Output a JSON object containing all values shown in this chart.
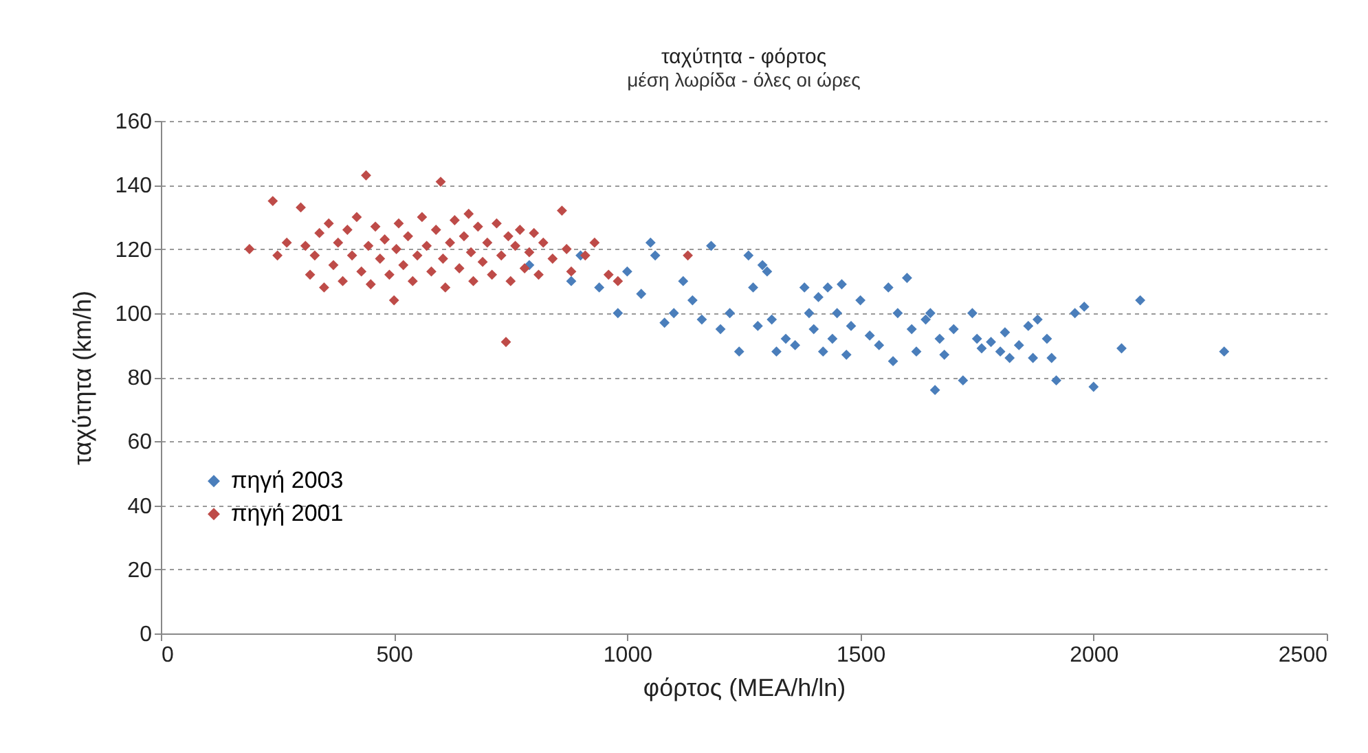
{
  "chart_data": {
    "type": "scatter",
    "title": "ταχύτητα - φόρτος",
    "subtitle": "μέση λωρίδα - όλες οι ώρες",
    "xlabel": "φόρτος (ΜΕΑ/h/ln)",
    "ylabel": "ταχύτητα (km/h)",
    "xlim": [
      0,
      2500
    ],
    "xticks": [
      0,
      500,
      1000,
      1500,
      2000,
      2500
    ],
    "ylim": [
      0,
      160
    ],
    "yticks": [
      0,
      20,
      40,
      60,
      80,
      100,
      120,
      140,
      160
    ],
    "grid": "y",
    "legend": "left",
    "marker": "diamond",
    "series": [
      {
        "name": "πηγή 2003",
        "color": "#4a7ebb",
        "x": [
          790,
          880,
          900,
          940,
          980,
          1000,
          1030,
          1050,
          1060,
          1080,
          1100,
          1120,
          1140,
          1160,
          1180,
          1200,
          1220,
          1240,
          1260,
          1270,
          1280,
          1290,
          1300,
          1310,
          1320,
          1340,
          1360,
          1380,
          1390,
          1400,
          1410,
          1420,
          1430,
          1440,
          1450,
          1460,
          1470,
          1480,
          1500,
          1520,
          1540,
          1560,
          1570,
          1580,
          1600,
          1610,
          1620,
          1640,
          1650,
          1660,
          1670,
          1680,
          1700,
          1720,
          1740,
          1750,
          1760,
          1780,
          1800,
          1810,
          1820,
          1840,
          1860,
          1870,
          1880,
          1900,
          1910,
          1920,
          1960,
          1980,
          2000,
          2060,
          2100,
          2280
        ],
        "values": [
          115,
          110,
          118,
          108,
          100,
          113,
          106,
          122,
          118,
          97,
          100,
          110,
          104,
          98,
          121,
          95,
          100,
          88,
          118,
          108,
          96,
          115,
          113,
          98,
          88,
          92,
          90,
          108,
          100,
          95,
          105,
          88,
          108,
          92,
          100,
          109,
          87,
          96,
          104,
          93,
          90,
          108,
          85,
          100,
          111,
          95,
          88,
          98,
          100,
          76,
          92,
          87,
          95,
          79,
          100,
          92,
          89,
          91,
          88,
          94,
          86,
          90,
          96,
          86,
          98,
          92,
          86,
          79,
          100,
          102,
          77,
          89,
          104,
          88
        ]
      },
      {
        "name": "πηγή 2001",
        "color": "#be4b48",
        "x": [
          190,
          240,
          250,
          270,
          300,
          310,
          320,
          330,
          340,
          350,
          360,
          370,
          380,
          390,
          400,
          410,
          420,
          430,
          440,
          445,
          450,
          460,
          470,
          480,
          490,
          500,
          505,
          510,
          520,
          530,
          540,
          550,
          560,
          570,
          580,
          590,
          600,
          605,
          610,
          620,
          630,
          640,
          650,
          660,
          665,
          670,
          680,
          690,
          700,
          710,
          720,
          730,
          740,
          745,
          750,
          760,
          770,
          780,
          790,
          800,
          810,
          820,
          840,
          860,
          870,
          880,
          910,
          930,
          960,
          980,
          1130
        ],
        "values": [
          120,
          135,
          118,
          122,
          133,
          121,
          112,
          118,
          125,
          108,
          128,
          115,
          122,
          110,
          126,
          118,
          130,
          113,
          143,
          121,
          109,
          127,
          117,
          123,
          112,
          104,
          120,
          128,
          115,
          124,
          110,
          118,
          130,
          121,
          113,
          126,
          141,
          117,
          108,
          122,
          129,
          114,
          124,
          131,
          119,
          110,
          127,
          116,
          122,
          112,
          128,
          118,
          91,
          124,
          110,
          121,
          126,
          114,
          119,
          125,
          112,
          122,
          117,
          132,
          120,
          113,
          118,
          122,
          112,
          110,
          118
        ]
      }
    ]
  }
}
